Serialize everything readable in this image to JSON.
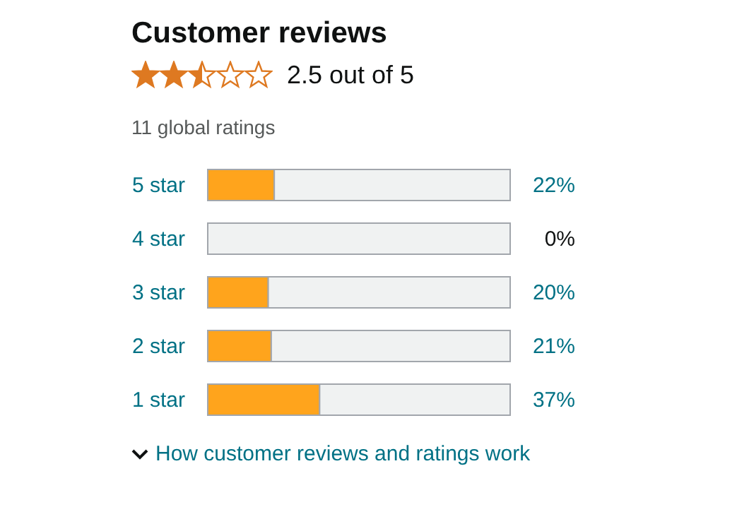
{
  "chart_data": {
    "type": "bar",
    "orientation": "horizontal",
    "stacked": true,
    "title": "Customer reviews",
    "subtitle": "2.5 out of 5",
    "annotations": [
      "11 global ratings",
      "How customer reviews and ratings work"
    ],
    "categories": [
      "5 star",
      "4 star",
      "3 star",
      "2 star",
      "1 star"
    ],
    "series": [
      {
        "color": "#ffa41c",
        "values": [
          22,
          0,
          20,
          21,
          37
        ],
        "value_labels": [
          "22%",
          "0%",
          "20%",
          "21%",
          "37%"
        ]
      },
      {
        "color": "#f0f2f2",
        "values": [
          78,
          100,
          80,
          79,
          63
        ]
      }
    ],
    "xlim": [
      0,
      100
    ],
    "tick_labels": "y"
  }
}
